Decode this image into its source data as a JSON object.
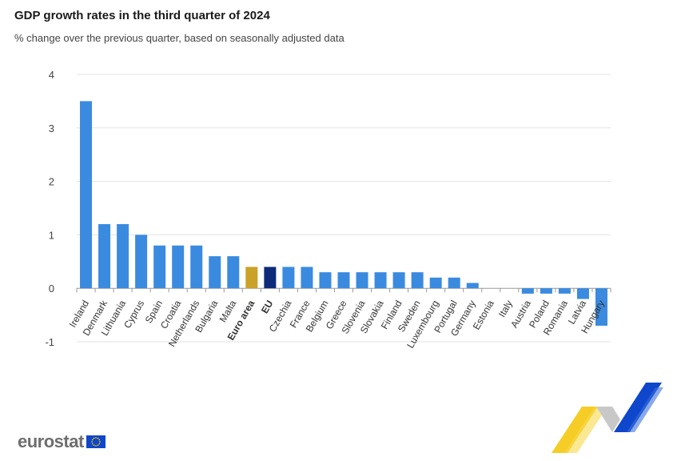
{
  "header": {
    "title": "GDP growth rates in the third quarter of 2024",
    "subtitle": "% change over the previous quarter, based on seasonally adjusted data"
  },
  "brand": {
    "name": "eurostat"
  },
  "colors": {
    "bar": "#3a8be0",
    "euro_area": "#c9a227",
    "eu": "#0e2b7a",
    "grid": "#e3e3e3",
    "axis": "#999999",
    "logo_blue": "#0e47cb",
    "logo_yellow": "#f5c400",
    "logo_grey": "#c8c8c8"
  },
  "chart_data": {
    "type": "bar",
    "title": "GDP growth rates in the third quarter of 2024",
    "subtitle": "% change over the previous quarter, based on seasonally adjusted data",
    "xlabel": "",
    "ylabel": "",
    "ylim": [
      -1,
      4
    ],
    "yticks": [
      -1,
      0,
      1,
      2,
      3,
      4
    ],
    "grid": true,
    "categories": [
      "Ireland",
      "Denmark",
      "Lithuania",
      "Cyprus",
      "Spain",
      "Croatia",
      "Netherlands",
      "Bulgaria",
      "Malta",
      "Euro area",
      "EU",
      "Czechia",
      "France",
      "Belgium",
      "Greece",
      "Slovenia",
      "Slovakia",
      "Finland",
      "Sweden",
      "Luxembourg",
      "Portugal",
      "Germany",
      "Estonia",
      "Italy",
      "Austria",
      "Poland",
      "Romania",
      "Latvia",
      "Hungary"
    ],
    "values": [
      3.5,
      1.2,
      1.2,
      1.0,
      0.8,
      0.8,
      0.8,
      0.6,
      0.6,
      0.4,
      0.4,
      0.4,
      0.4,
      0.3,
      0.3,
      0.3,
      0.3,
      0.3,
      0.3,
      0.2,
      0.2,
      0.1,
      0.0,
      0.0,
      -0.1,
      -0.1,
      -0.1,
      -0.2,
      -0.7
    ],
    "highlighted": [
      "Euro area",
      "EU"
    ]
  }
}
